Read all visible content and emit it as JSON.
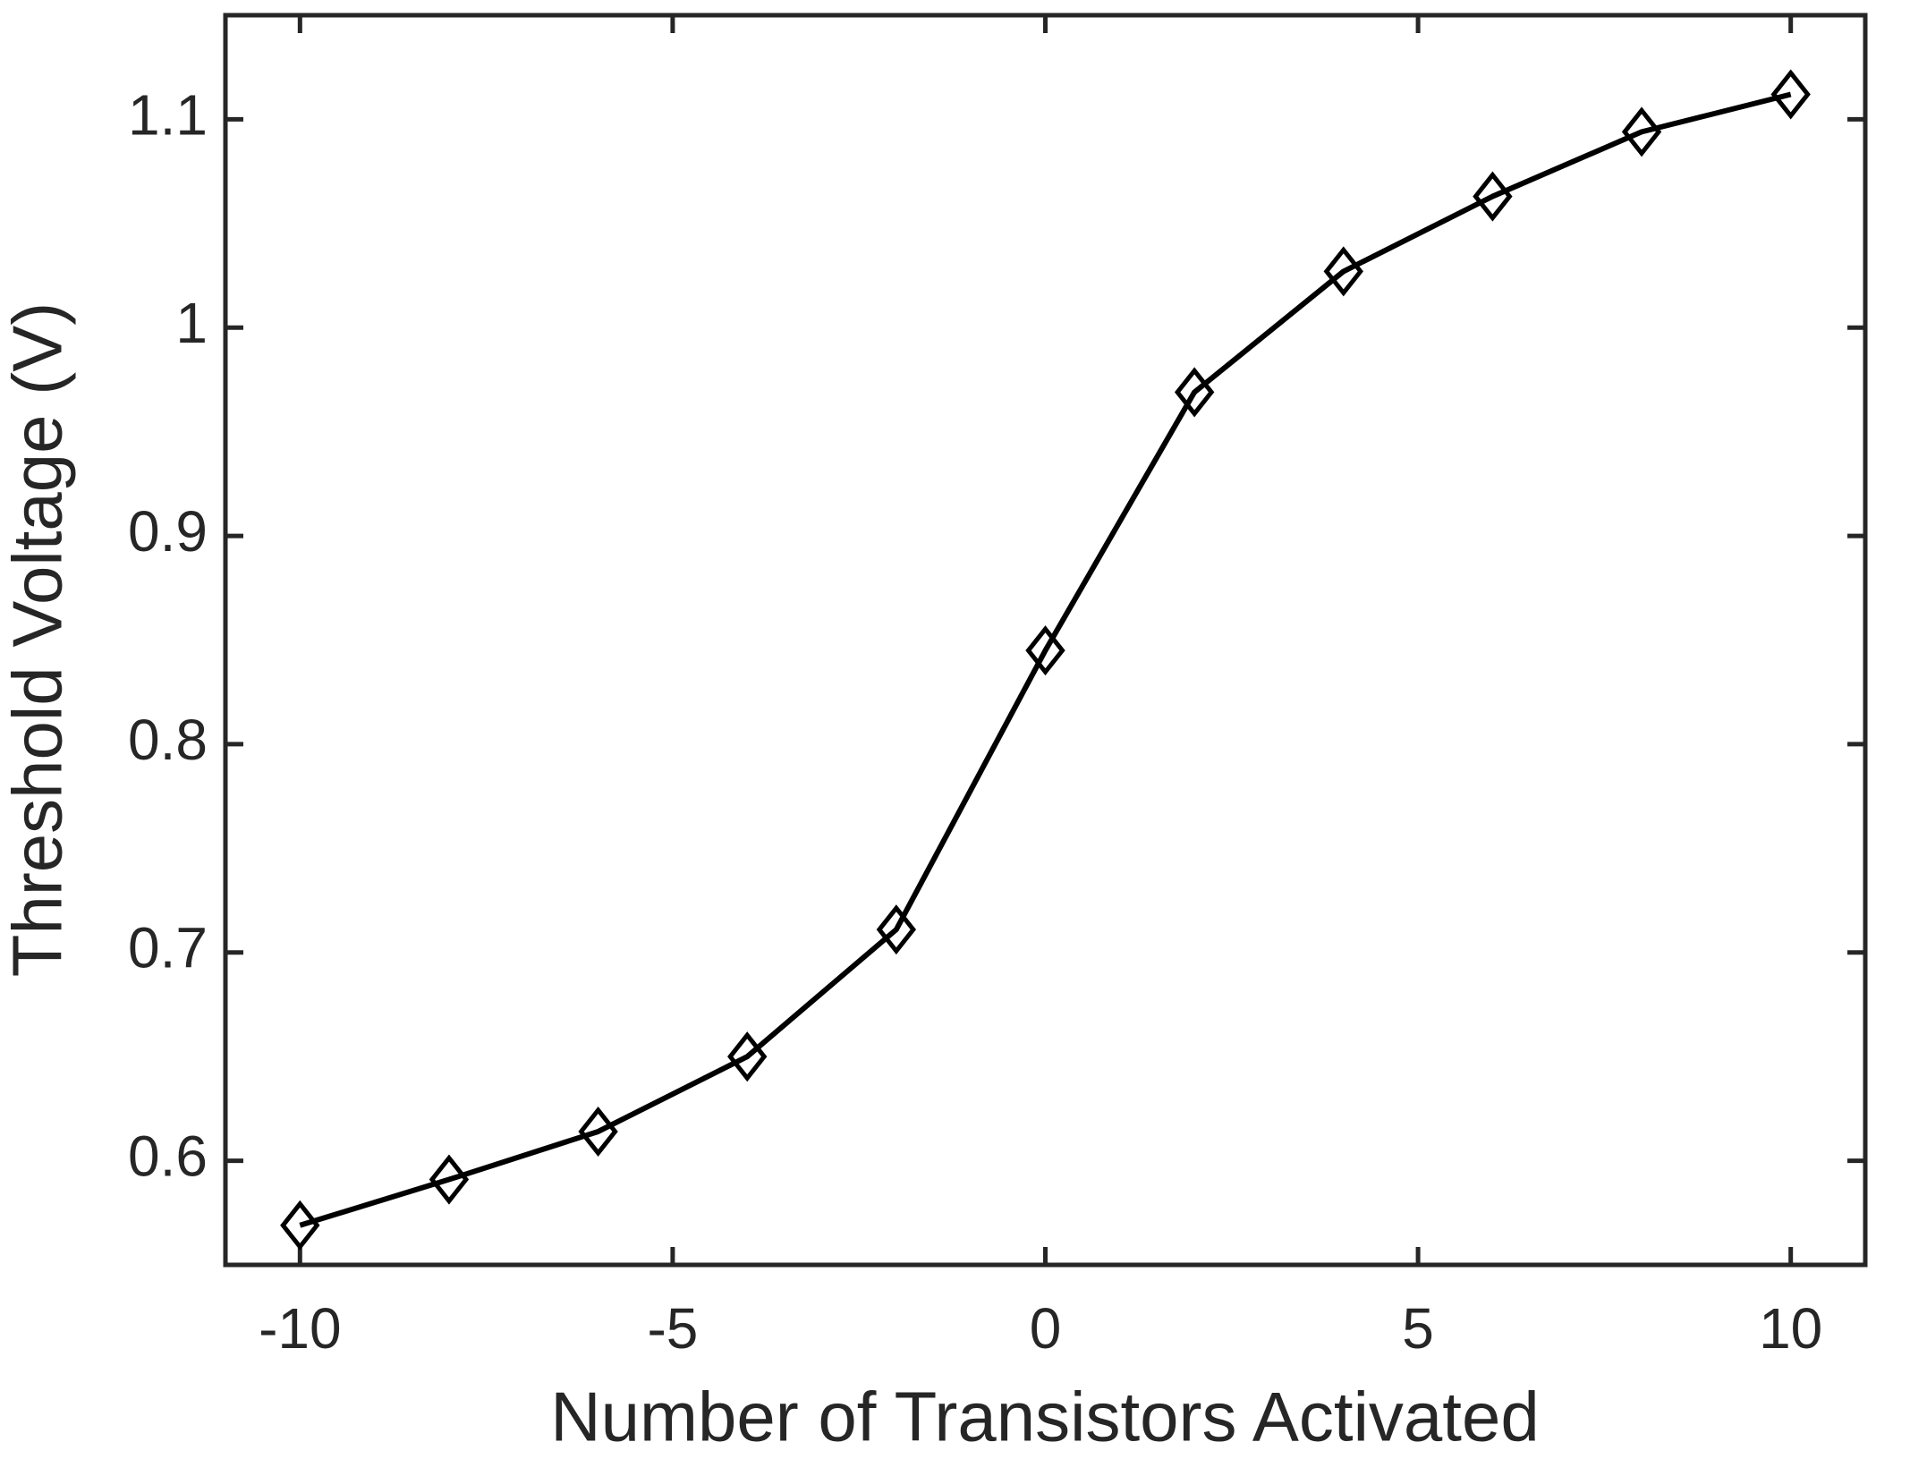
{
  "chart_data": {
    "type": "line",
    "x_label": "Number of Transistors Activated",
    "y_label": "Threshold Voltage (V)",
    "x": [
      -10,
      -8,
      -6,
      -4,
      -2,
      0,
      2,
      4,
      6,
      8,
      10
    ],
    "values": [
      0.569,
      0.591,
      0.614,
      0.65,
      0.711,
      0.845,
      0.969,
      1.027,
      1.063,
      1.094,
      1.112
    ],
    "color": "#000000",
    "marker": "diamond",
    "xlim": [
      -11,
      11
    ],
    "xticks": [
      -10,
      -5,
      0,
      5,
      10
    ],
    "ylim": [
      0.55,
      1.15
    ],
    "yticks": [
      0.6,
      0.7,
      0.8,
      0.9,
      1,
      1.1
    ],
    "grid": false
  }
}
